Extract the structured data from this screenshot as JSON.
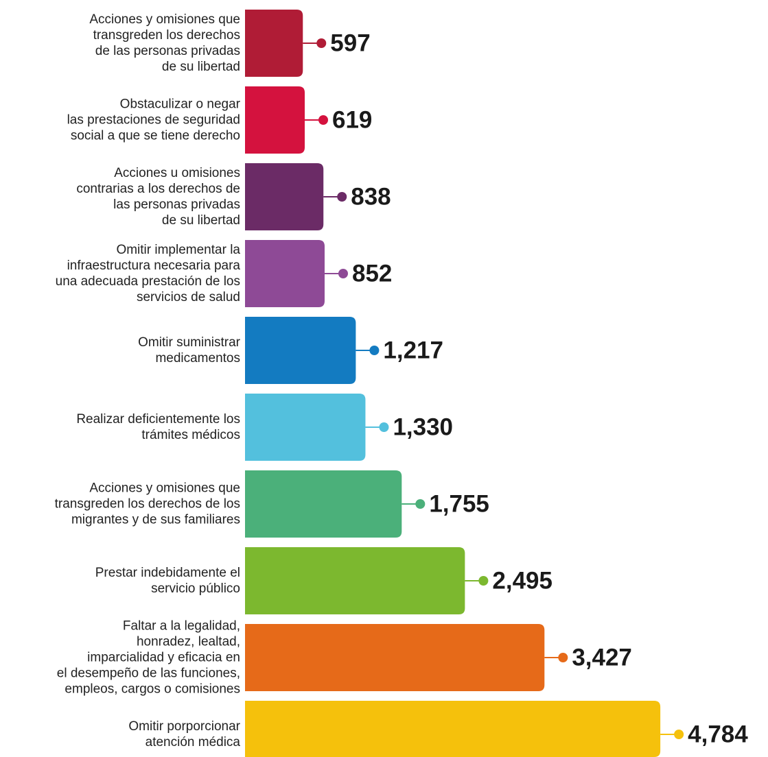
{
  "chart_data": {
    "type": "bar",
    "orientation": "horizontal",
    "categories": [
      "Acciones y omisiones que\ntransgreden los derechos\nde las personas privadas\nde su libertad",
      "Obstaculizar o negar\nlas prestaciones de seguridad\nsocial a que se tiene derecho",
      "Acciones u omisiones\ncontrarias a los derechos de\nlas personas privadas\nde su libertad",
      "Omitir implementar la\ninfraestructura necesaria para\nuna adecuada prestación de los\nservicios de salud",
      "Omitir suministrar\nmedicamentos",
      "Realizar deficientemente los\ntrámites médicos",
      "Acciones y omisiones que\ntransgreden los derechos de los\nmigrantes y de sus familiares",
      "Prestar indebidamente el\nservicio público",
      "Faltar a la legalidad,\nhonradez, lealtad,\nimparcialidad y eficacia en\nel desempeño de las funciones,\nempleos, cargos o comisiones",
      "Omitir porporcionar\natención médica"
    ],
    "values": [
      597,
      619,
      838,
      852,
      1217,
      1330,
      1755,
      2495,
      3427,
      4784
    ],
    "value_labels": [
      "597",
      "619",
      "838",
      "852",
      "1,217",
      "1,330",
      "1,755",
      "2,495",
      "3,427",
      "4,784"
    ],
    "colors": [
      "#b01c36",
      "#d4123e",
      "#6b2b66",
      "#8e4a96",
      "#137bc1",
      "#53c0dd",
      "#4bb07a",
      "#7cb82f",
      "#e66a19",
      "#f5c10c"
    ]
  }
}
